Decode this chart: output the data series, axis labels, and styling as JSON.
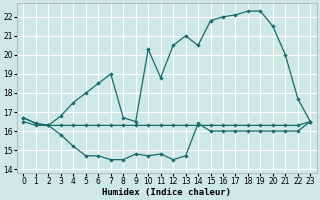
{
  "xlabel": "Humidex (Indice chaleur)",
  "xlim": [
    -0.5,
    23.5
  ],
  "ylim": [
    13.8,
    22.7
  ],
  "yticks": [
    14,
    15,
    16,
    17,
    18,
    19,
    20,
    21,
    22
  ],
  "xticks": [
    0,
    1,
    2,
    3,
    4,
    5,
    6,
    7,
    8,
    9,
    10,
    11,
    12,
    13,
    14,
    15,
    16,
    17,
    18,
    19,
    20,
    21,
    22,
    23
  ],
  "bg_color": "#cde8e5",
  "grid_color": "#ffffff",
  "line_color": "#1a6b6b",
  "line1_x": [
    0,
    1,
    2,
    3,
    4,
    5,
    6,
    7,
    8,
    9,
    10,
    11,
    12,
    13,
    14,
    15,
    16,
    17,
    18,
    19,
    20,
    21,
    22,
    23
  ],
  "line1_y": [
    16.5,
    16.3,
    16.3,
    16.3,
    16.3,
    16.3,
    16.3,
    16.3,
    16.3,
    16.3,
    16.3,
    16.3,
    16.3,
    16.3,
    16.3,
    16.3,
    16.3,
    16.3,
    16.3,
    16.3,
    16.3,
    16.3,
    16.3,
    16.5
  ],
  "line2_x": [
    0,
    1,
    2,
    3,
    4,
    5,
    6,
    7,
    8,
    9,
    10,
    11,
    12,
    13,
    14,
    15,
    16,
    17,
    18,
    19,
    20,
    21,
    22,
    23
  ],
  "line2_y": [
    16.7,
    16.4,
    16.3,
    15.8,
    15.2,
    14.7,
    14.7,
    14.5,
    14.5,
    14.8,
    14.7,
    14.8,
    14.5,
    14.7,
    16.4,
    16.0,
    16.0,
    16.0,
    16.0,
    16.0,
    16.0,
    16.0,
    16.0,
    16.5
  ],
  "line3_x": [
    0,
    1,
    2,
    3,
    4,
    5,
    6,
    7,
    8,
    9,
    10,
    11,
    12,
    13,
    14,
    15,
    16,
    17,
    18,
    19,
    20,
    21,
    22,
    23
  ],
  "line3_y": [
    16.7,
    16.4,
    16.3,
    16.8,
    17.5,
    18.0,
    18.5,
    19.0,
    16.7,
    16.5,
    20.3,
    18.8,
    20.5,
    21.0,
    20.5,
    21.8,
    22.0,
    22.1,
    22.3,
    22.3,
    21.5,
    20.0,
    17.7,
    16.5
  ]
}
